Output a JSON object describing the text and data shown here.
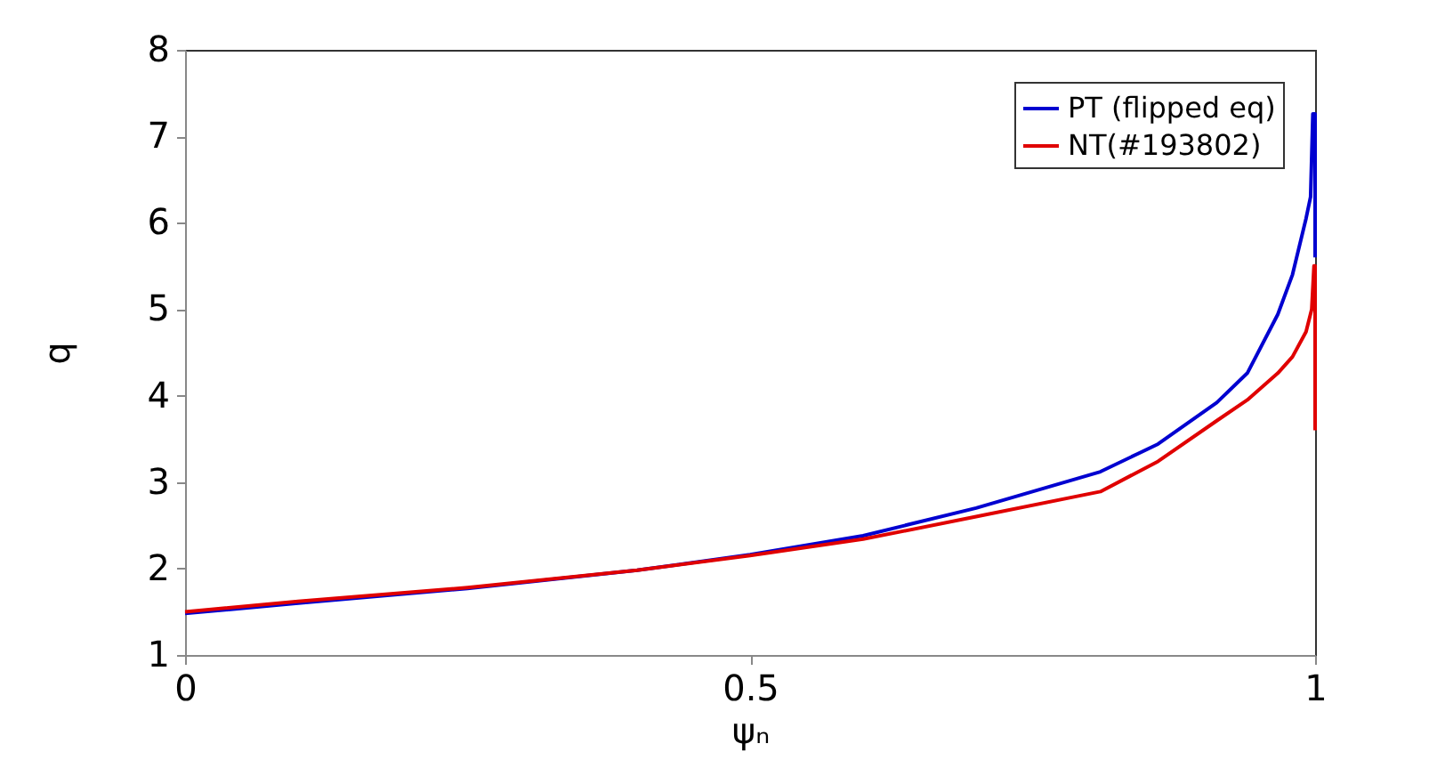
{
  "chart_data": {
    "type": "line",
    "xlabel": "ψₙ",
    "ylabel": "q",
    "xlim": [
      0,
      1
    ],
    "ylim": [
      1,
      8
    ],
    "xticks": [
      0,
      0.5,
      1
    ],
    "yticks": [
      1,
      2,
      3,
      4,
      5,
      6,
      7,
      8
    ],
    "grid": false,
    "legend": "top right",
    "line_style": "solid",
    "marker": "none",
    "series": [
      {
        "name": "PT (flipped eq)",
        "color": "#0000d0",
        "x": [
          0,
          0.1,
          0.25,
          0.4,
          0.5,
          0.6,
          0.7,
          0.81,
          0.861,
          0.913,
          0.94,
          0.967,
          0.98,
          0.992,
          0.996,
          0.998,
          1.0,
          1.0
        ],
        "values": [
          1.48,
          1.6,
          1.77,
          1.98,
          2.16,
          2.38,
          2.7,
          3.12,
          3.44,
          3.92,
          4.26,
          4.94,
          5.4,
          6.05,
          6.3,
          7.26,
          7.26,
          5.6
        ]
      },
      {
        "name": "NT(#193802)",
        "color": "#e00000",
        "x": [
          0,
          0.1,
          0.25,
          0.4,
          0.5,
          0.6,
          0.7,
          0.81,
          0.861,
          0.913,
          0.94,
          0.967,
          0.98,
          0.992,
          0.997,
          0.999,
          1.0,
          1.0
        ],
        "values": [
          1.5,
          1.62,
          1.78,
          1.98,
          2.15,
          2.34,
          2.6,
          2.89,
          3.24,
          3.71,
          3.95,
          4.26,
          4.45,
          4.74,
          5.0,
          5.5,
          5.5,
          3.6
        ]
      }
    ]
  }
}
